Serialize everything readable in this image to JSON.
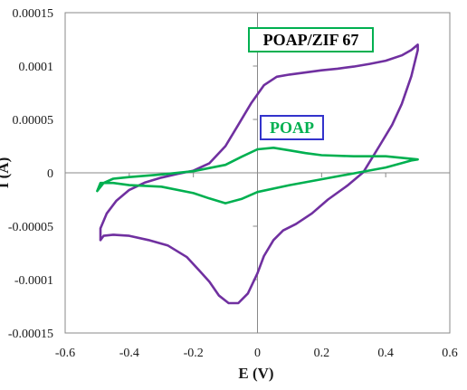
{
  "chart_data": {
    "type": "line",
    "title": "",
    "xlabel": "E (V)",
    "ylabel": "I (A)",
    "xlim": [
      -0.6,
      0.6
    ],
    "ylim": [
      -0.00015,
      0.00015
    ],
    "x_ticks": [
      -0.6,
      -0.4,
      -0.2,
      0,
      0.2,
      0.4,
      0.6
    ],
    "x_tick_labels": [
      "-0.6",
      "-0.4",
      "-0.2",
      "0",
      "0.2",
      "0.4",
      "0.6"
    ],
    "y_ticks": [
      -0.00015,
      -0.0001,
      -5e-05,
      0,
      5e-05,
      0.0001,
      0.00015
    ],
    "y_tick_labels": [
      "-0.00015",
      "-0.0001",
      "-0.00005",
      "0",
      "0.00005",
      "0.0001",
      "0.00015"
    ],
    "grid": false,
    "series": [
      {
        "name": "POAP/ZIF 67",
        "color": "#7030a0",
        "label_border_color": "#00b050",
        "label_text_color": "#000000",
        "x": [
          -0.49,
          -0.49,
          -0.47,
          -0.44,
          -0.4,
          -0.35,
          -0.3,
          -0.25,
          -0.2,
          -0.15,
          -0.1,
          -0.06,
          -0.02,
          0.02,
          0.06,
          0.1,
          0.15,
          0.2,
          0.25,
          0.3,
          0.35,
          0.4,
          0.45,
          0.48,
          0.5,
          0.5,
          0.48,
          0.45,
          0.42,
          0.38,
          0.33,
          0.28,
          0.22,
          0.17,
          0.12,
          0.08,
          0.05,
          0.02,
          0.0,
          -0.03,
          -0.06,
          -0.09,
          -0.12,
          -0.15,
          -0.18,
          -0.22,
          -0.28,
          -0.34,
          -0.4,
          -0.45,
          -0.48,
          -0.49
        ],
        "y": [
          -6.3e-05,
          -5.2e-05,
          -3.8e-05,
          -2.6e-05,
          -1.6e-05,
          -9e-06,
          -4.5e-06,
          -1e-06,
          2e-06,
          9e-06,
          2.5e-05,
          4.5e-05,
          6.5e-05,
          8.2e-05,
          9e-05,
          9.2e-05,
          9.4e-05,
          9.6e-05,
          9.75e-05,
          9.95e-05,
          0.000102,
          0.000105,
          0.00011,
          0.000115,
          0.00012,
          0.000115,
          9.05e-05,
          6.45e-05,
          4.5e-05,
          2.5e-05,
          5e-07,
          -1.2e-05,
          -2.5e-05,
          -3.8e-05,
          -4.8e-05,
          -5.4e-05,
          -6.3e-05,
          -7.8e-05,
          -9.4e-05,
          -0.000113,
          -0.000122,
          -0.000122,
          -0.000115,
          -0.000102,
          -9.2e-05,
          -7.9e-05,
          -6.8e-05,
          -6.3e-05,
          -5.9e-05,
          -5.8e-05,
          -5.9e-05,
          -6.3e-05
        ]
      },
      {
        "name": "POAP",
        "color": "#00b050",
        "label_border_color": "#3333cc",
        "label_text_color": "#00b050",
        "x": [
          -0.5,
          -0.48,
          -0.45,
          -0.4,
          -0.3,
          -0.2,
          -0.1,
          -0.05,
          0.0,
          0.05,
          0.1,
          0.15,
          0.2,
          0.3,
          0.4,
          0.5,
          0.48,
          0.4,
          0.3,
          0.2,
          0.1,
          0.0,
          -0.05,
          -0.1,
          -0.15,
          -0.2,
          -0.3,
          -0.4,
          -0.45,
          -0.49,
          -0.5
        ],
        "y": [
          -1.7e-05,
          -9.5e-06,
          -5.5e-06,
          -4e-06,
          -1.5e-06,
          1.5e-06,
          7.5e-06,
          1.5e-05,
          2.2e-05,
          2.35e-05,
          2.1e-05,
          1.85e-05,
          1.65e-05,
          1.55e-05,
          1.55e-05,
          1.25e-05,
          1.15e-05,
          5e-06,
          -5e-07,
          -6e-06,
          -1.15e-05,
          -1.8e-05,
          -2.45e-05,
          -2.85e-05,
          -2.4e-05,
          -1.9e-05,
          -1.3e-05,
          -1.15e-05,
          -9.5e-06,
          -9.5e-06,
          -1.7e-05
        ]
      }
    ]
  }
}
